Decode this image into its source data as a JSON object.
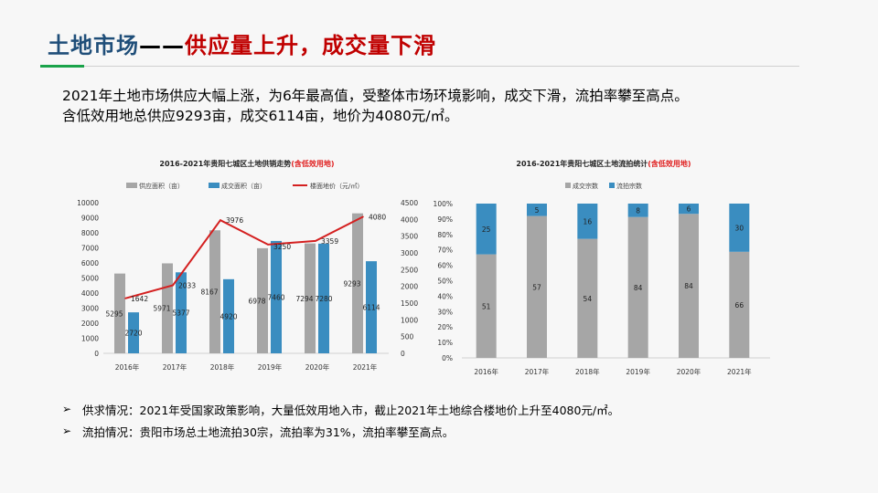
{
  "header": {
    "title_part1": "土地市场",
    "title_dash": "——",
    "title_part2": "供应量上升，成交量下滑",
    "accent_color": "#1aa34a"
  },
  "intro": {
    "line1": "2021年土地市场供应大幅上涨，为6年最高值，受整体市场环境影响，成交下滑，流拍率攀至高点。",
    "line2": "含低效用地总供应9293亩，成交6114亩，地价为4080元/㎡。"
  },
  "bullets": [
    {
      "icon": "arrow-right-icon",
      "text": "供求情况：2021年受国家政策影响，大量低效用地入市，截止2021年土地综合楼地价上升至4080元/㎡。"
    },
    {
      "icon": "arrow-right-icon",
      "text": "流拍情况：贵阳市场总土地流拍30宗，流拍率为31%，流拍率攀至高点。"
    }
  ],
  "chart_data": [
    {
      "type": "bar+line",
      "title": "2016-2021年贵阳七城区土地供销走势",
      "title_highlight": "(含低效用地)",
      "categories": [
        "2016年",
        "2017年",
        "2018年",
        "2019年",
        "2020年",
        "2021年"
      ],
      "series": [
        {
          "name": "供应面积（亩）",
          "type": "bar",
          "axis": "left",
          "color": "#a6a6a6",
          "values": [
            5295,
            5971,
            8167,
            6978,
            7294,
            9293
          ]
        },
        {
          "name": "成交面积（亩）",
          "type": "bar",
          "axis": "left",
          "color": "#3a8dc0",
          "values": [
            2720,
            5377,
            4920,
            7460,
            7280,
            6114
          ]
        },
        {
          "name": "楼面地价（元/㎡）",
          "type": "line",
          "axis": "right",
          "color": "#d42020",
          "values": [
            1642,
            2033,
            3976,
            3250,
            3359,
            4080
          ]
        }
      ],
      "ylim": [
        0,
        10000
      ],
      "yticks": [
        "0",
        "1000",
        "2000",
        "3000",
        "4000",
        "5000",
        "6000",
        "7000",
        "8000",
        "9000",
        "10000"
      ],
      "y2lim": [
        0,
        4500
      ],
      "y2ticks": [
        "0",
        "500",
        "1000",
        "1500",
        "2000",
        "2500",
        "3000",
        "3500",
        "4000",
        "4500"
      ],
      "legend": "top",
      "grid": false
    },
    {
      "type": "stacked-bar-100",
      "title": "2016-2021年贵阳七城区土地流拍统计",
      "title_highlight": "(含低效用地)",
      "categories": [
        "2016年",
        "2017年",
        "2018年",
        "2019年",
        "2020年",
        "2021年"
      ],
      "series": [
        {
          "name": "成交宗数",
          "color": "#a6a6a6",
          "values": [
            51,
            57,
            54,
            84,
            84,
            66
          ]
        },
        {
          "name": "流拍宗数",
          "color": "#3a8dc0",
          "values": [
            25,
            5,
            16,
            8,
            6,
            30
          ]
        }
      ],
      "ylim": [
        0,
        100
      ],
      "yticks": [
        "0%",
        "10%",
        "20%",
        "30%",
        "40%",
        "50%",
        "60%",
        "70%",
        "80%",
        "90%",
        "100%"
      ],
      "legend": "top",
      "grid": false
    }
  ]
}
